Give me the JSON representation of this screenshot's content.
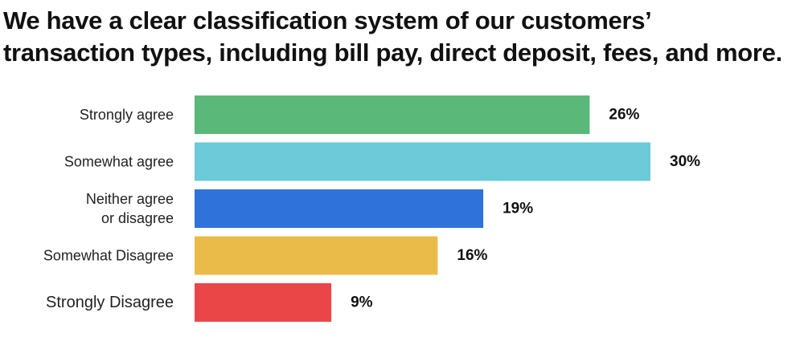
{
  "title_line1": "We have a clear classification system of our customers’",
  "title_line2": "transaction types, including bill pay, direct deposit, fees, and more.",
  "chart_data": {
    "type": "bar",
    "orientation": "horizontal",
    "categories": [
      [
        "Strongly agree"
      ],
      [
        "Somewhat agree"
      ],
      [
        "Neither agree",
        "or disagree"
      ],
      [
        "Somewhat Disagree"
      ],
      [
        "Strongly Disagree"
      ]
    ],
    "values": [
      26,
      30,
      19,
      16,
      9
    ],
    "value_labels": [
      "26%",
      "30%",
      "19%",
      "16%",
      "9%"
    ],
    "colors": [
      "#5ab879",
      "#6dcad9",
      "#2f72da",
      "#ebbb4a",
      "#ea4648"
    ],
    "unit": "%",
    "grid": false,
    "legend": "none"
  }
}
